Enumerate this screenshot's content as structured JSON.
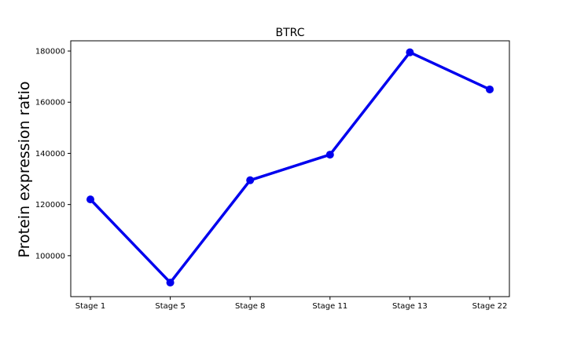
{
  "chart_data": {
    "type": "line",
    "title": "BTRC",
    "xlabel": "",
    "ylabel": "Protein expression ratio",
    "categories": [
      "Stage 1",
      "Stage 5",
      "Stage 8",
      "Stage 11",
      "Stage 13",
      "Stage 22"
    ],
    "series": [
      {
        "values": [
          122000,
          89500,
          129500,
          139500,
          179500,
          165000
        ]
      }
    ],
    "ylim": [
      84000,
      184000
    ],
    "y_ticks": [
      100000,
      120000,
      140000,
      160000,
      180000
    ],
    "y_tick_labels": [
      "100000",
      "120000",
      "140000",
      "160000",
      "180000"
    ],
    "grid": false,
    "legend": "none",
    "colors": {
      "line": "#0000ee",
      "marker": "#0000ee",
      "frame": "#000000"
    }
  }
}
